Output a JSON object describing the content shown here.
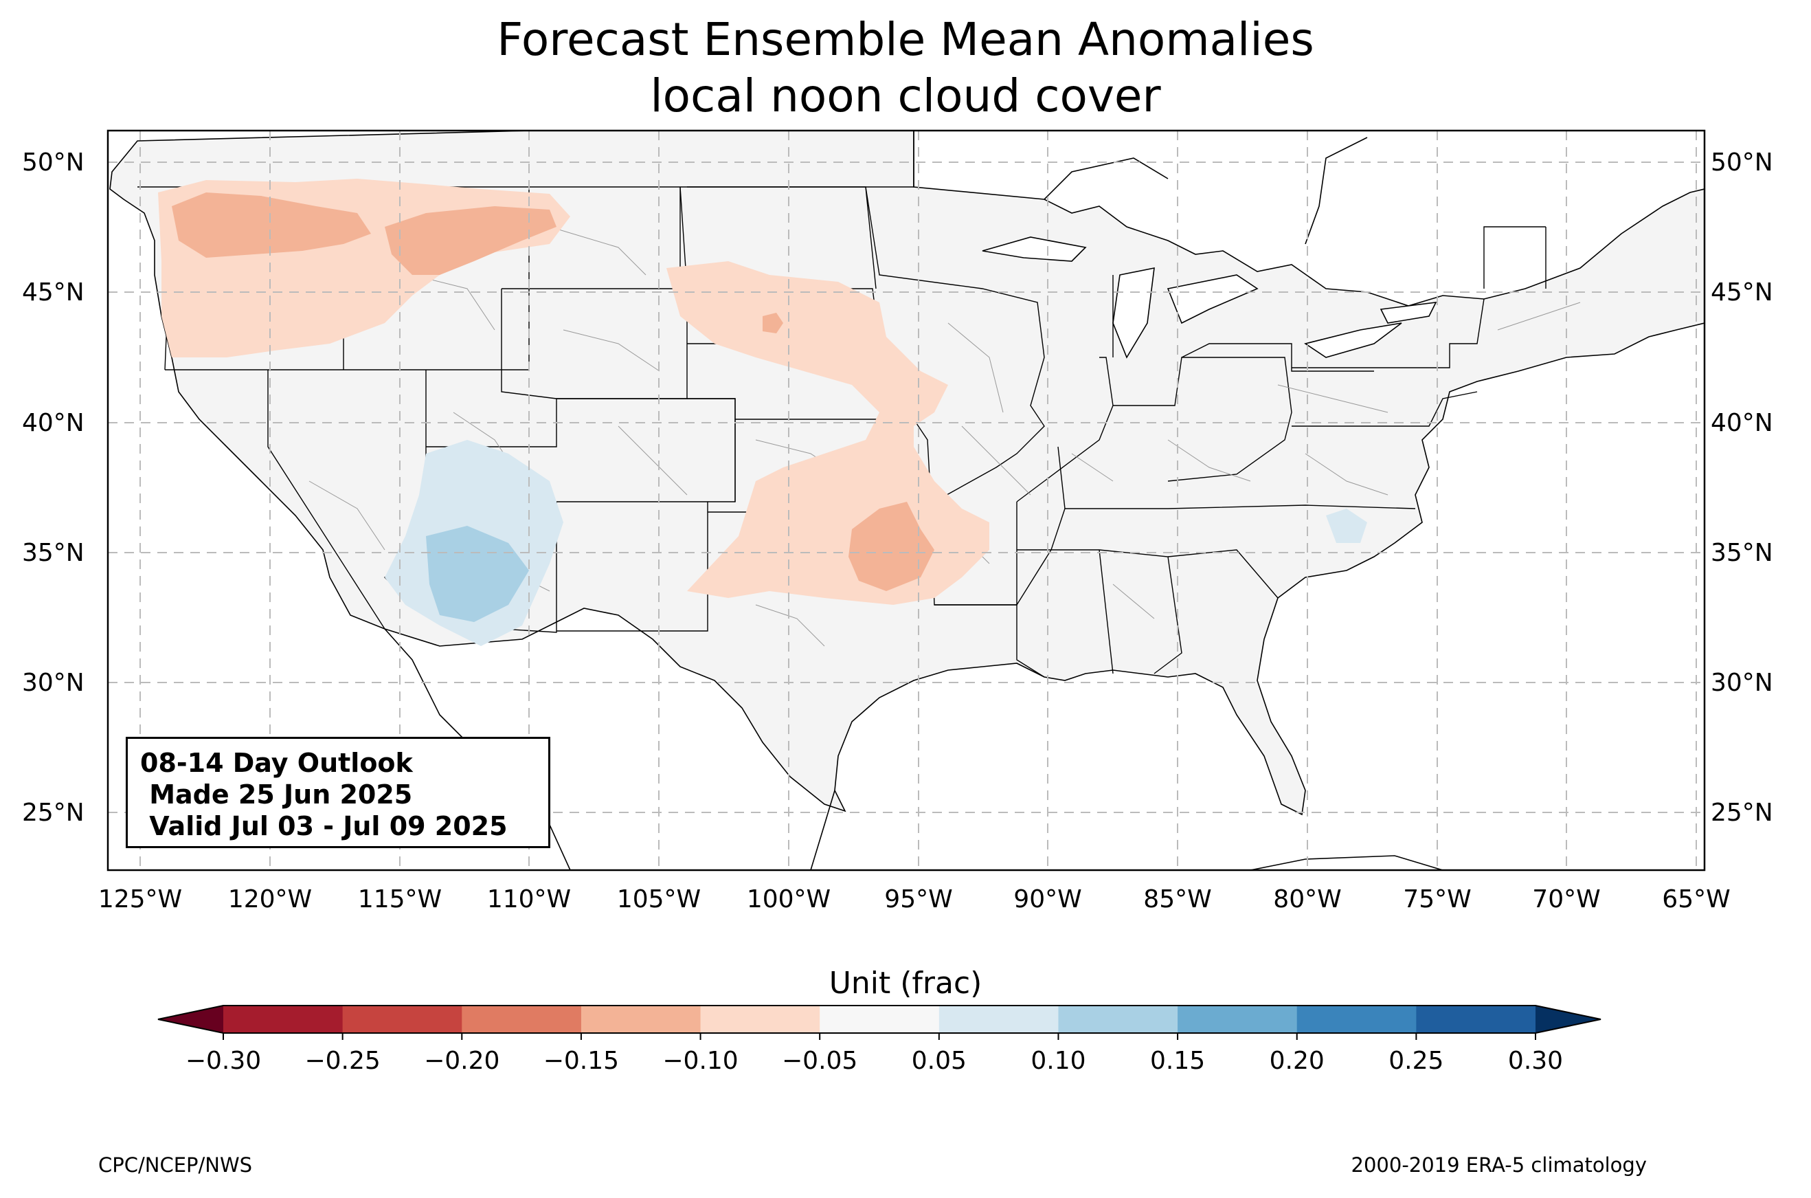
{
  "title": {
    "line1": "Forecast Ensemble Mean Anomalies",
    "line2": "local noon cloud cover"
  },
  "map": {
    "projection": "PlateCarree",
    "lon_range": [
      -126.3,
      -64.7
    ],
    "lat_range": [
      22.8,
      51.2
    ],
    "lon_ticks": [
      "125°W",
      "120°W",
      "115°W",
      "110°W",
      "105°W",
      "100°W",
      "95°W",
      "90°W",
      "85°W",
      "80°W",
      "75°W",
      "70°W",
      "65°W"
    ],
    "lat_ticks": [
      "50°N",
      "45°N",
      "40°N",
      "35°N",
      "30°N",
      "25°N"
    ],
    "gridlines": true,
    "land_color": "#f4f4f4",
    "anomaly_regions": [
      {
        "name": "Pacific Northwest",
        "sign": "negative",
        "range": "-0.10 to -0.15"
      },
      {
        "name": "Northern Rockies",
        "sign": "negative",
        "range": "-0.10 to -0.15"
      },
      {
        "name": "Central Plains",
        "sign": "negative",
        "range": "-0.10 to -0.15"
      },
      {
        "name": "Arizona",
        "sign": "positive",
        "range": "0.05 to 0.15"
      },
      {
        "name": "North Carolina",
        "sign": "positive",
        "range": "0.05 to 0.10"
      }
    ]
  },
  "infobox": {
    "line1": "08-14 Day Outlook",
    "line2": " Made 25 Jun 2025",
    "line3": " Valid Jul 03 - Jul 09 2025"
  },
  "colorbar": {
    "label": "Unit (frac)",
    "ticks": [
      "−0.30",
      "−0.25",
      "−0.20",
      "−0.15",
      "−0.10",
      "−0.05",
      "0.05",
      "0.10",
      "0.15",
      "0.20",
      "0.25",
      "0.30"
    ],
    "colors": [
      "#a51c2d",
      "#c6443f",
      "#e07b62",
      "#f3b396",
      "#fcdac9",
      "#f7f7f7",
      "#d8e8f1",
      "#a9d0e4",
      "#6babd0",
      "#3a84bb",
      "#1f5e9e"
    ],
    "under_color": "#67001f",
    "over_color": "#053061"
  },
  "footer": {
    "left": "CPC/NCEP/NWS",
    "right": "2000-2019 ERA-5 climatology"
  }
}
